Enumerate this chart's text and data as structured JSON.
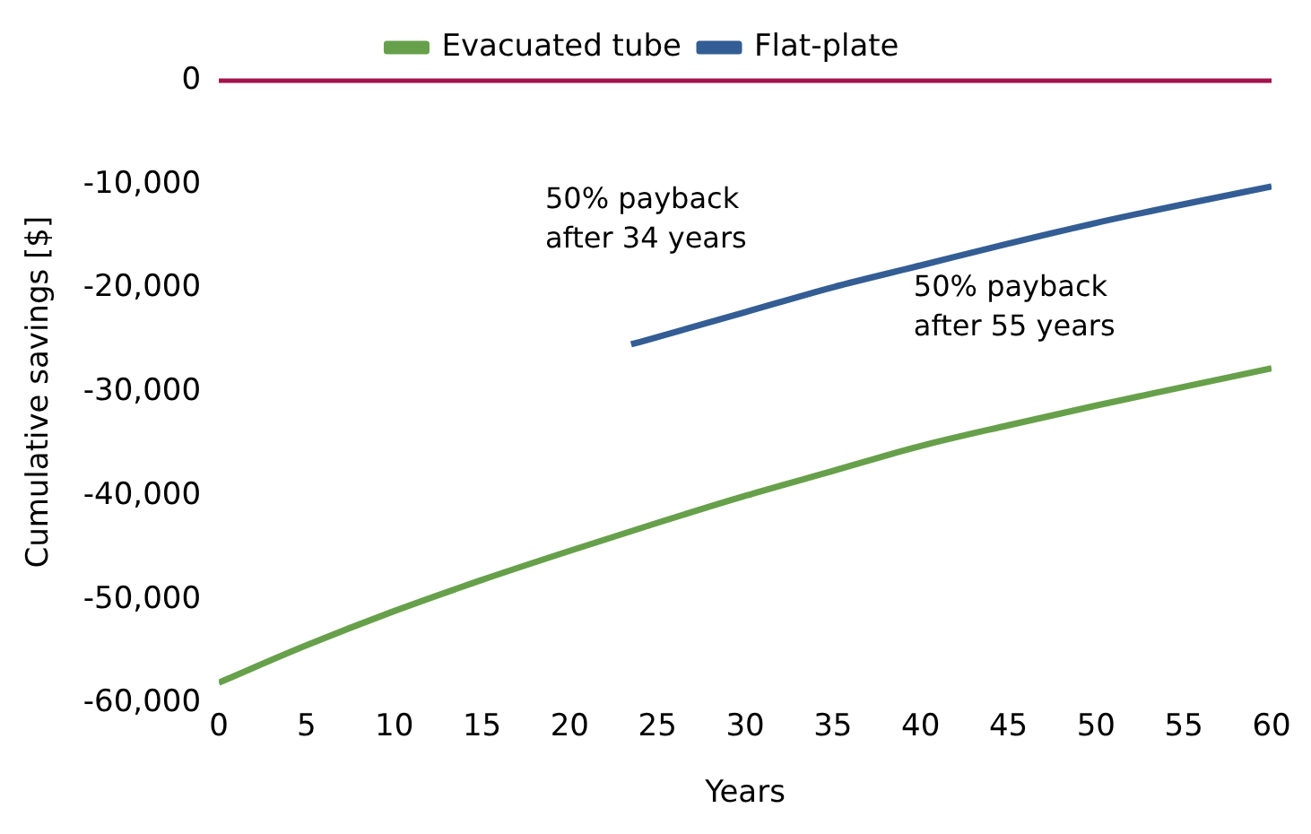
{
  "chart_data": {
    "type": "line",
    "xlabel": "Years",
    "ylabel": "Cumulative savings [$]",
    "x": [
      0,
      5,
      10,
      15,
      20,
      25,
      30,
      35,
      40,
      45,
      50,
      55,
      60
    ],
    "series": [
      {
        "name": "Evacuated tube",
        "color": "#67a04a",
        "values": [
          -58000,
          -54400,
          -51100,
          -48100,
          -45300,
          -42600,
          -40000,
          -37600,
          -35200,
          -33200,
          -31300,
          -29500,
          -27700
        ]
      },
      {
        "name": "Flat-plate",
        "color": "#335d94",
        "x": [
          23.5,
          25,
          30,
          35,
          40,
          45,
          50,
          55,
          60
        ],
        "values": [
          -25400,
          -24700,
          -22300,
          -19900,
          -17800,
          -15700,
          -13700,
          -11900,
          -10200
        ]
      }
    ],
    "xlim": [
      0,
      60
    ],
    "xticks": [
      0,
      5,
      10,
      15,
      20,
      25,
      30,
      35,
      40,
      45,
      50,
      55,
      60
    ],
    "ylim": [
      -60000,
      0
    ],
    "yticks": [
      {
        "value": -60000,
        "label": "-60,000"
      },
      {
        "value": -50000,
        "label": "-50,000"
      },
      {
        "value": -40000,
        "label": "-40,000"
      },
      {
        "value": -30000,
        "label": "-30,000"
      },
      {
        "value": -20000,
        "label": "-20,000"
      },
      {
        "value": -10000,
        "label": "-10,000"
      },
      0
    ],
    "ref_lines": [
      {
        "axis": "y",
        "value": 0,
        "color": "#a1134a"
      }
    ],
    "annotations": [
      "50% payback\nafter 34 years",
      "50% payback\nafter 55 years"
    ],
    "grid": false,
    "legend": "top",
    "marker": "none",
    "line_style": "solid"
  }
}
